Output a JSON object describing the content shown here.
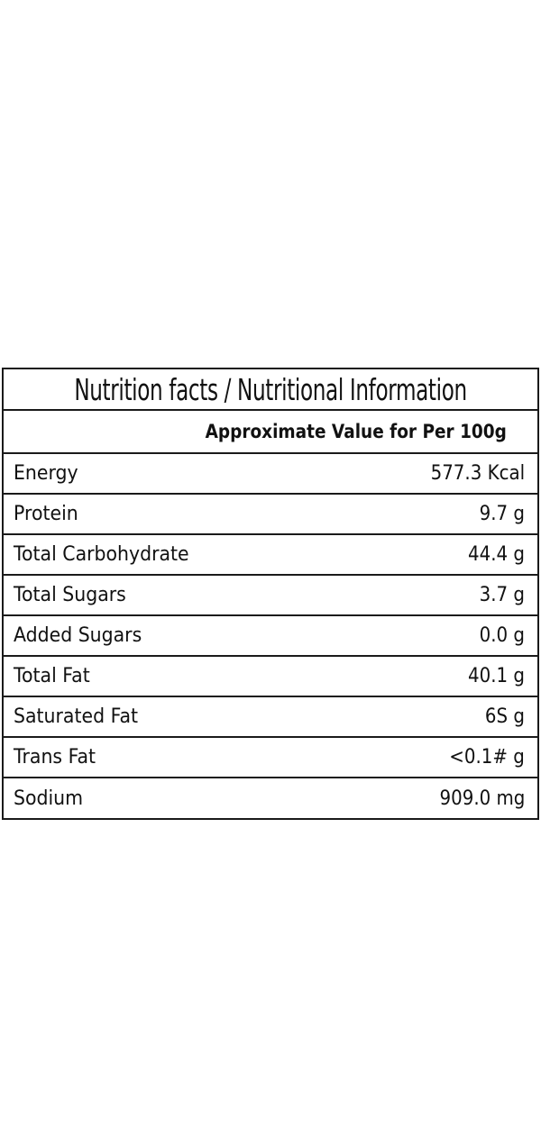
{
  "table": {
    "title": "Nutrition facts / Nutritional Information",
    "subtitle": "Approximate Value for Per 100g",
    "rows": [
      {
        "nutrient": "Energy",
        "amount": "577.3 Kcal"
      },
      {
        "nutrient": "Protein",
        "amount": "9.7 g"
      },
      {
        "nutrient": "Total Carbohydrate",
        "amount": "44.4 g"
      },
      {
        "nutrient": "Total Sugars",
        "amount": "3.7 g"
      },
      {
        "nutrient": "Added Sugars",
        "amount": "0.0 g"
      },
      {
        "nutrient": "Total Fat",
        "amount": "40.1 g"
      },
      {
        "nutrient": "Saturated Fat",
        "amount": "6S g"
      },
      {
        "nutrient": "Trans Fat",
        "amount": "<0.1# g"
      },
      {
        "nutrient": "Sodium",
        "amount": "909.0 mg"
      }
    ]
  }
}
